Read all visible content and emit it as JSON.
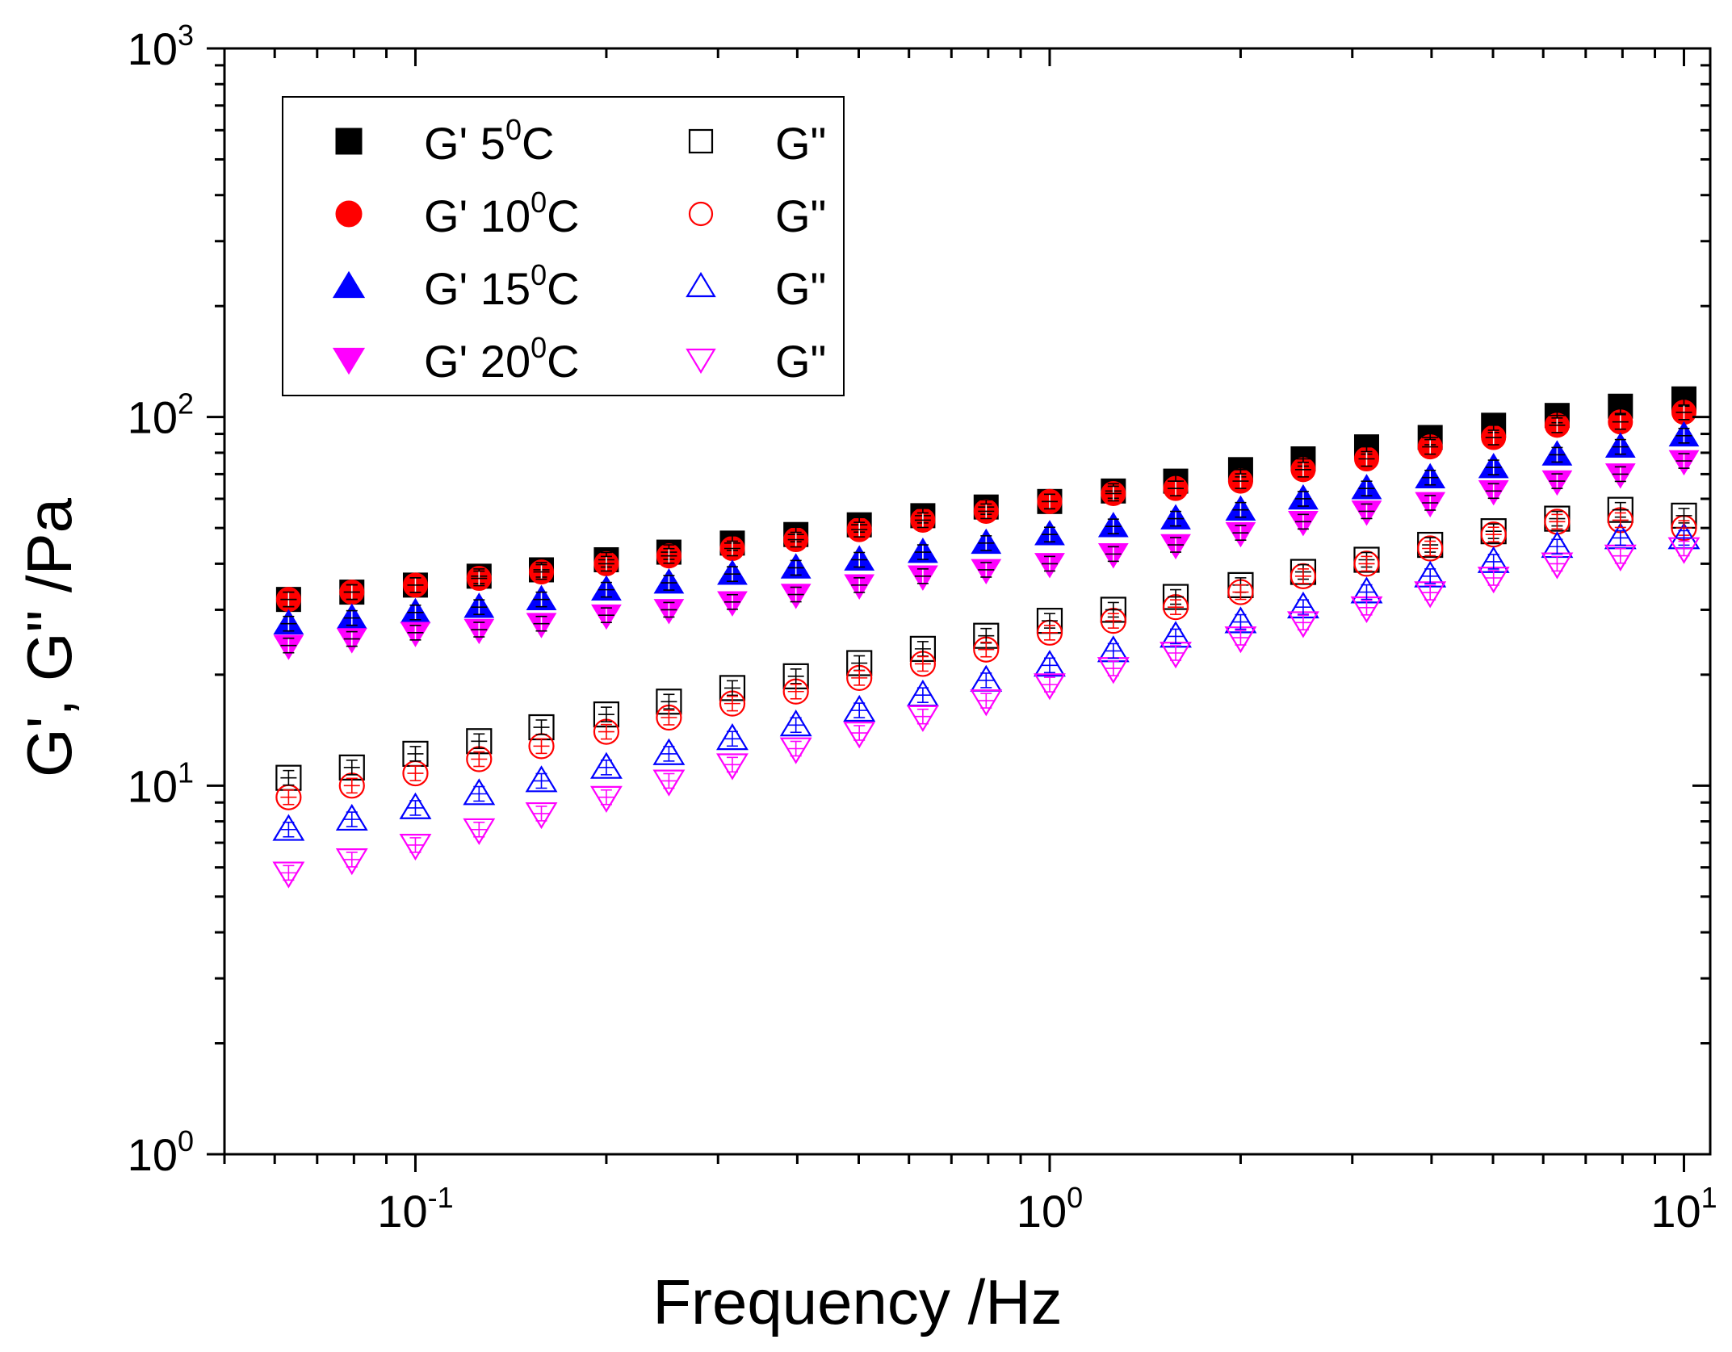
{
  "chart_data": {
    "type": "scatter",
    "xscale": "log",
    "yscale": "log",
    "xlim": [
      0.05,
      11
    ],
    "ylim": [
      1,
      1000
    ],
    "xlabel": "Frequency /Hz",
    "ylabel": "G', G\" /Pa",
    "x_ticks": [
      {
        "value": 0.1,
        "base": "10",
        "exp": "-1"
      },
      {
        "value": 1,
        "base": "10",
        "exp": "0"
      },
      {
        "value": 10,
        "base": "10",
        "exp": "1"
      }
    ],
    "y_ticks": [
      {
        "value": 1,
        "base": "10",
        "exp": "0"
      },
      {
        "value": 10,
        "base": "10",
        "exp": "1"
      },
      {
        "value": 100,
        "base": "10",
        "exp": "2"
      },
      {
        "value": 1000,
        "base": "10",
        "exp": "3"
      }
    ],
    "legend_position": "top-left",
    "x": [
      0.0631,
      0.0794,
      0.1,
      0.126,
      0.158,
      0.2,
      0.251,
      0.316,
      0.398,
      0.501,
      0.631,
      0.794,
      1.0,
      1.26,
      1.58,
      2.0,
      2.51,
      3.16,
      3.98,
      5.01,
      6.31,
      7.94,
      10.0
    ],
    "series": [
      {
        "name": "G' 5",
        "temp": "5",
        "label_prefix": "G' ",
        "label_suffix": "C",
        "marker": "square",
        "filled": true,
        "color": "#000000",
        "values": [
          32,
          33.5,
          35,
          37,
          38.5,
          41,
          43,
          45.5,
          48,
          51,
          54,
          57,
          59,
          63,
          67,
          72,
          77,
          83,
          88,
          95,
          101,
          107,
          112
        ]
      },
      {
        "name": "G' 10",
        "temp": "10",
        "label_prefix": "G' ",
        "label_suffix": "C",
        "marker": "circle",
        "filled": true,
        "color": "#ff0000",
        "values": [
          32,
          33.5,
          35,
          36.5,
          38,
          40,
          42,
          44,
          46.5,
          49.5,
          52.5,
          55.5,
          59,
          62,
          64,
          67,
          72,
          77,
          83,
          88,
          95,
          97,
          103
        ]
      },
      {
        "name": "G' 15",
        "temp": "15",
        "label_prefix": "G' ",
        "label_suffix": "C",
        "marker": "triangle-up",
        "filled": true,
        "color": "#0000ff",
        "values": [
          27.5,
          28.5,
          29.5,
          30.5,
          32,
          34,
          35.5,
          37.5,
          39,
          41,
          43,
          45.5,
          48,
          50.5,
          53,
          56,
          60,
          64,
          68.5,
          73,
          79,
          83,
          89
        ]
      },
      {
        "name": "G' 20",
        "temp": "20",
        "label_prefix": "G' ",
        "label_suffix": "C",
        "marker": "triangle-down",
        "filled": true,
        "color": "#ff00ff",
        "values": [
          24,
          25,
          26,
          26.5,
          27.5,
          29,
          30,
          31.5,
          33,
          35,
          37,
          38.5,
          40,
          42.5,
          45,
          48.5,
          52,
          55.5,
          58.5,
          63,
          67,
          70,
          76
        ]
      },
      {
        "name": "G\" 5",
        "label": "G\"",
        "marker": "square",
        "filled": false,
        "color": "#000000",
        "values": [
          10.5,
          11.2,
          12.2,
          13.2,
          14.4,
          15.6,
          16.9,
          18.4,
          19.8,
          21.5,
          23.5,
          25.5,
          28,
          30,
          32.5,
          35,
          38,
          41,
          45,
          49,
          53,
          56,
          54
        ]
      },
      {
        "name": "G\" 10",
        "label": "G\"",
        "marker": "circle",
        "filled": false,
        "color": "#ff0000",
        "values": [
          9.3,
          10.0,
          10.8,
          11.8,
          12.8,
          14,
          15.3,
          16.7,
          18,
          19.6,
          21.4,
          23.4,
          26,
          28,
          30.5,
          33.5,
          37,
          40,
          44,
          48,
          52,
          52.5,
          50
        ]
      },
      {
        "name": "G\" 15",
        "label": "G\"",
        "marker": "triangle-up",
        "filled": false,
        "color": "#0000ff",
        "values": [
          7.6,
          8.1,
          8.7,
          9.5,
          10.3,
          11.2,
          12.2,
          13.4,
          14.6,
          16,
          17.6,
          19.3,
          21.2,
          23.2,
          25.4,
          27.8,
          30.5,
          33.5,
          37,
          40.5,
          44.5,
          47,
          47
        ]
      },
      {
        "name": "G\" 20",
        "label": "G\"",
        "marker": "triangle-down",
        "filled": false,
        "color": "#ff00ff",
        "values": [
          5.8,
          6.3,
          6.9,
          7.6,
          8.4,
          9.3,
          10.3,
          11.4,
          12.6,
          13.9,
          15.4,
          17.0,
          18.8,
          20.8,
          22.9,
          25.2,
          27.7,
          30.4,
          33.4,
          36.6,
          40,
          42,
          44
        ]
      }
    ]
  }
}
